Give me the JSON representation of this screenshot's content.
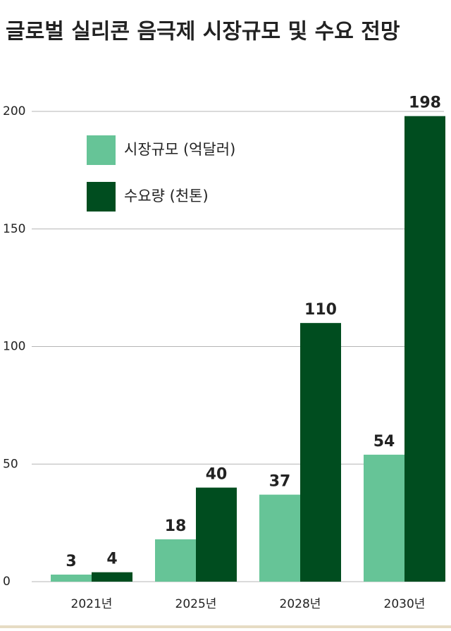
{
  "chart_data": {
    "type": "bar",
    "title": "글로벌 실리콘 음극제 시장규모 및 수요 전망",
    "categories": [
      "2021년",
      "2025년",
      "2028년",
      "2030년"
    ],
    "series": [
      {
        "name": "시장규모 (억달러)",
        "color": "#66c497",
        "values": [
          3,
          18,
          37,
          54
        ]
      },
      {
        "name": "수요량 (천톤)",
        "color": "#004d1f",
        "values": [
          4,
          40,
          110,
          198
        ]
      }
    ],
    "ylim": [
      0,
      200
    ],
    "yticks": [
      0,
      50,
      100,
      150,
      200
    ],
    "grid": true
  }
}
